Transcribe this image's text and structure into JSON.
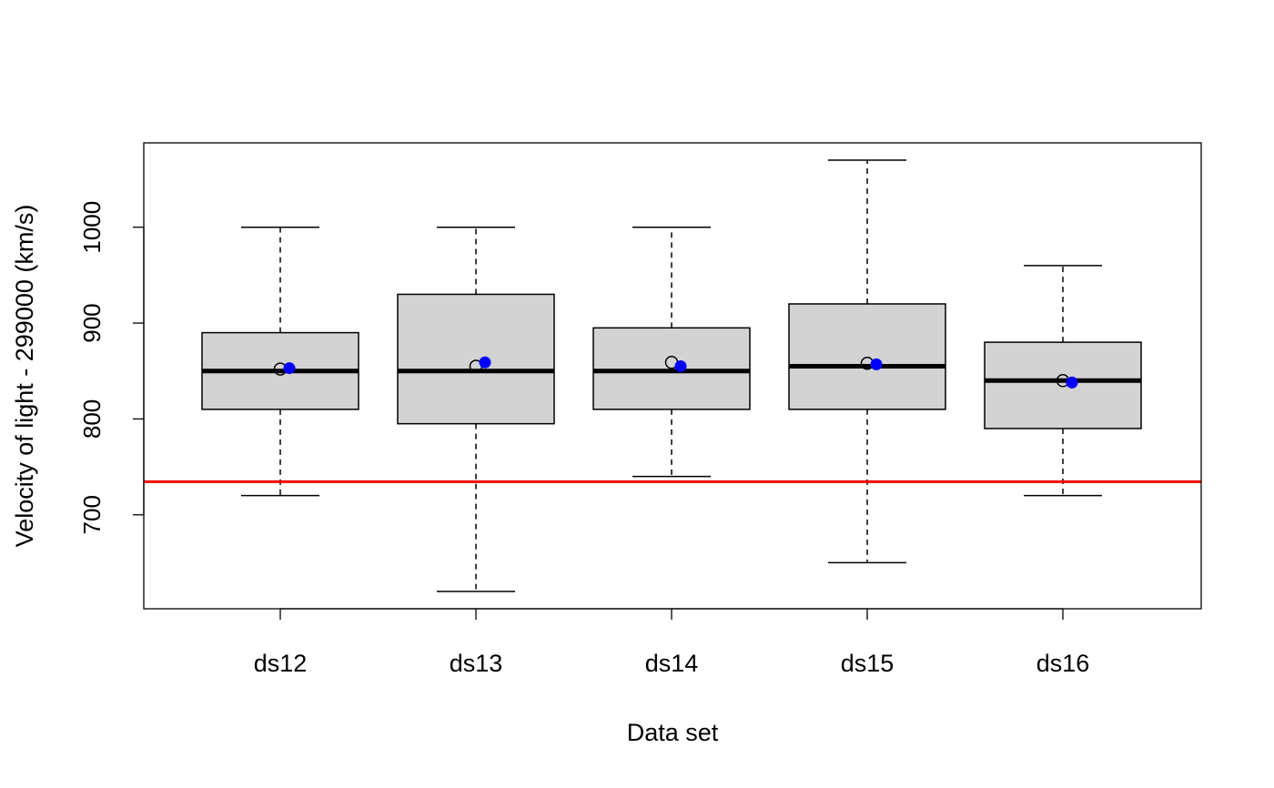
{
  "chart_data": {
    "type": "boxplot",
    "title": "",
    "xlabel": "Data set",
    "ylabel": "Velocity of light - 299000 (km/s)",
    "categories": [
      "ds12",
      "ds13",
      "ds14",
      "ds15",
      "ds16"
    ],
    "boxes": [
      {
        "whisker_low": 720,
        "q1": 810,
        "median": 850,
        "q3": 890,
        "whisker_high": 1000,
        "mean": 853,
        "point": 852
      },
      {
        "whisker_low": 620,
        "q1": 795,
        "median": 850,
        "q3": 930,
        "whisker_high": 1000,
        "mean": 859,
        "point": 855
      },
      {
        "whisker_low": 740,
        "q1": 810,
        "median": 850,
        "q3": 895,
        "whisker_high": 1000,
        "mean": 855,
        "point": 859
      },
      {
        "whisker_low": 650,
        "q1": 810,
        "median": 855,
        "q3": 920,
        "whisker_high": 1070,
        "mean": 857,
        "point": 858
      },
      {
        "whisker_low": 720,
        "q1": 790,
        "median": 840,
        "q3": 880,
        "whisker_high": 960,
        "mean": 838,
        "point": 840
      }
    ],
    "reference_line": {
      "y": 734.5,
      "color": "#ff0000"
    },
    "yticks": [
      700,
      800,
      900,
      1000
    ],
    "ylim": [
      602,
      1088
    ],
    "grid": false,
    "legend": "none",
    "colors": {
      "box_fill": "#d3d3d3",
      "mean_marker": "#0000ff",
      "reference": "#ff0000"
    }
  }
}
